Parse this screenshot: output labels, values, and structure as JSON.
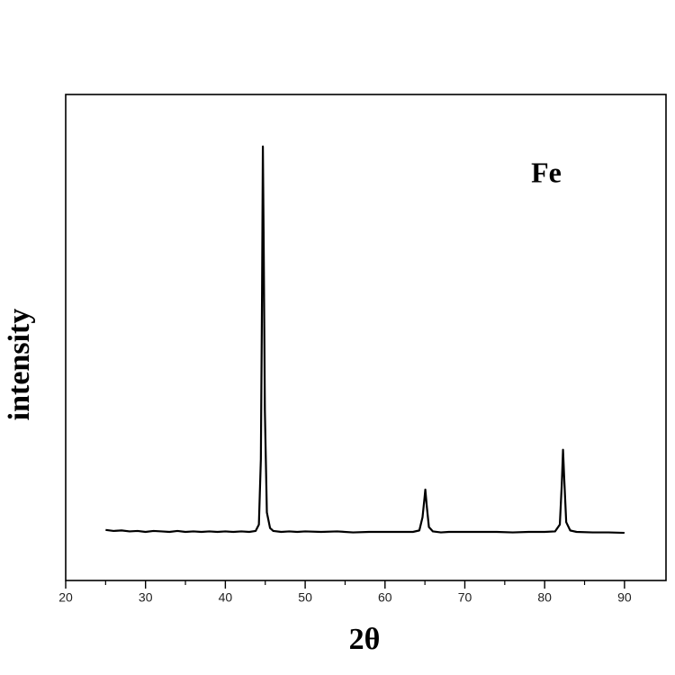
{
  "chart_data": {
    "type": "line",
    "annotation": "Fe",
    "x_label": "2θ",
    "y_label": "intensity",
    "color": "#000000",
    "x": [
      25,
      26,
      27,
      28,
      29,
      30,
      31,
      32,
      33,
      34,
      35,
      36,
      37,
      38,
      39,
      40,
      41,
      42,
      43,
      43.8,
      44.2,
      44.45,
      44.6,
      44.7,
      44.8,
      44.95,
      45.2,
      45.6,
      46,
      47,
      48,
      49,
      50,
      52,
      54,
      56,
      58,
      60,
      62,
      63.5,
      64.3,
      64.7,
      64.95,
      65.05,
      65.25,
      65.5,
      66,
      67,
      68,
      70,
      72,
      74,
      76,
      78,
      80,
      81.3,
      81.9,
      82.15,
      82.3,
      82.45,
      82.7,
      83.2,
      84,
      86,
      88,
      90
    ],
    "values": [
      10.4,
      10.2,
      10.3,
      10.1,
      10.2,
      10.0,
      10.2,
      10.1,
      10.0,
      10.2,
      10.0,
      10.1,
      10.0,
      10.1,
      10.0,
      10.1,
      10.0,
      10.1,
      10.0,
      10.2,
      11.5,
      25,
      60,
      89.3,
      70,
      35,
      14,
      10.8,
      10.2,
      10.0,
      10.1,
      10.0,
      10.1,
      10.0,
      10.1,
      9.9,
      10.0,
      10.0,
      10.0,
      10.0,
      10.3,
      13,
      17,
      18.7,
      15,
      11,
      10.1,
      9.9,
      10.0,
      10.0,
      10.0,
      10.0,
      9.9,
      10.0,
      10.0,
      10.1,
      11.5,
      20,
      26.9,
      21,
      12,
      10.3,
      10.0,
      9.9,
      9.9,
      9.8
    ],
    "xlim": [
      20,
      95.2
    ],
    "xticks": [
      20,
      30,
      40,
      50,
      60,
      70,
      80,
      90
    ],
    "ylim": [
      0,
      100
    ]
  }
}
